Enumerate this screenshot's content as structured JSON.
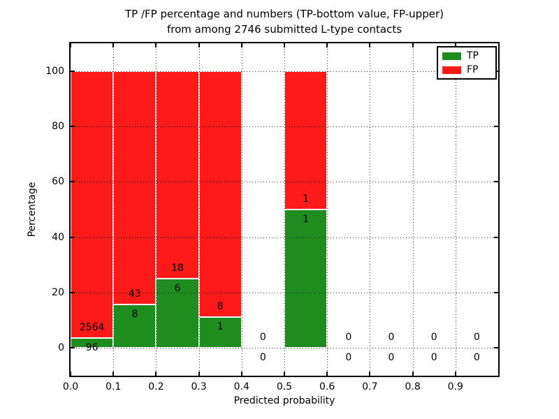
{
  "title": {
    "line1": "TP /FP percentage and numbers (TP-bottom value, FP-upper)",
    "line2": "from among 2746 submitted L-type contacts"
  },
  "axes": {
    "xlabel": "Predicted probability",
    "ylabel": "Percentage"
  },
  "legend": {
    "items": [
      {
        "label": "TP",
        "color": "#1e8c1e"
      },
      {
        "label": "FP",
        "color": "#ff1a1a"
      }
    ]
  },
  "chart_data": {
    "type": "bar",
    "stacked": true,
    "title": "TP /FP percentage and numbers (TP-bottom value, FP-upper) from among 2746 submitted L-type contacts",
    "xlabel": "Predicted probability",
    "ylabel": "Percentage",
    "xlim": [
      0.0,
      1.0
    ],
    "ylim": [
      -10,
      110
    ],
    "grid": true,
    "legend_position": "upper right",
    "x_tick_labels": [
      "0.0",
      "0.1",
      "0.2",
      "0.3",
      "0.4",
      "0.5",
      "0.6",
      "0.7",
      "0.8",
      "0.9"
    ],
    "y_tick_values": [
      0,
      20,
      40,
      60,
      80,
      100
    ],
    "bin_width": 0.1,
    "total_contacts": 2746,
    "bins": [
      {
        "x0": 0.0,
        "x1": 0.1,
        "tp_count": 96,
        "fp_count": 2564
      },
      {
        "x0": 0.1,
        "x1": 0.2,
        "tp_count": 8,
        "fp_count": 43
      },
      {
        "x0": 0.2,
        "x1": 0.3,
        "tp_count": 6,
        "fp_count": 18
      },
      {
        "x0": 0.3,
        "x1": 0.4,
        "tp_count": 1,
        "fp_count": 8
      },
      {
        "x0": 0.4,
        "x1": 0.5,
        "tp_count": 0,
        "fp_count": 0
      },
      {
        "x0": 0.5,
        "x1": 0.6,
        "tp_count": 1,
        "fp_count": 1
      },
      {
        "x0": 0.6,
        "x1": 0.7,
        "tp_count": 0,
        "fp_count": 0
      },
      {
        "x0": 0.7,
        "x1": 0.8,
        "tp_count": 0,
        "fp_count": 0
      },
      {
        "x0": 0.8,
        "x1": 0.9,
        "tp_count": 0,
        "fp_count": 0
      },
      {
        "x0": 0.9,
        "x1": 1.0,
        "tp_count": 0,
        "fp_count": 0
      }
    ]
  }
}
